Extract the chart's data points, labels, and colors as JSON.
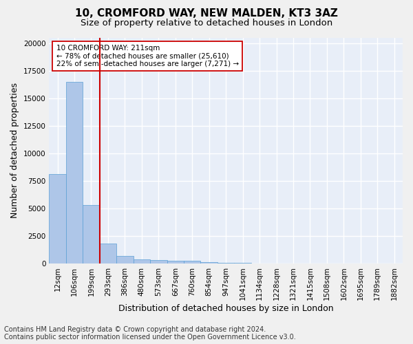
{
  "title1": "10, CROMFORD WAY, NEW MALDEN, KT3 3AZ",
  "title2": "Size of property relative to detached houses in London",
  "xlabel": "Distribution of detached houses by size in London",
  "ylabel": "Number of detached properties",
  "categories": [
    "12sqm",
    "106sqm",
    "199sqm",
    "293sqm",
    "386sqm",
    "480sqm",
    "573sqm",
    "667sqm",
    "760sqm",
    "854sqm",
    "947sqm",
    "1041sqm",
    "1134sqm",
    "1228sqm",
    "1321sqm",
    "1415sqm",
    "1508sqm",
    "1602sqm",
    "1695sqm",
    "1789sqm",
    "1882sqm"
  ],
  "bar_values": [
    8100,
    16500,
    5300,
    1800,
    700,
    350,
    280,
    220,
    220,
    100,
    50,
    30,
    20,
    15,
    10,
    8,
    5,
    4,
    3,
    2,
    1
  ],
  "bar_color": "#aec6e8",
  "bar_edge_color": "#5a9fd4",
  "bar_edge_width": 0.5,
  "vline_pos": 2.5,
  "vline_color": "#cc0000",
  "ylim": [
    0,
    20500
  ],
  "annotation_text": "10 CROMFORD WAY: 211sqm\n← 78% of detached houses are smaller (25,610)\n22% of semi-detached houses are larger (7,271) →",
  "annotation_box_color": "#ffffff",
  "annotation_box_edge": "#cc0000",
  "footer1": "Contains HM Land Registry data © Crown copyright and database right 2024.",
  "footer2": "Contains public sector information licensed under the Open Government Licence v3.0.",
  "background_color": "#e8eef8",
  "grid_color": "#ffffff",
  "title1_fontsize": 11,
  "title2_fontsize": 9.5,
  "xlabel_fontsize": 9,
  "ylabel_fontsize": 9,
  "tick_fontsize": 7.5,
  "annotation_fontsize": 7.5,
  "footer_fontsize": 7
}
